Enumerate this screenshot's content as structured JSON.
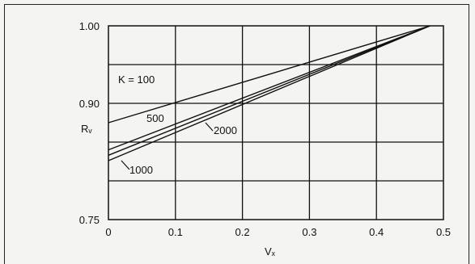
{
  "chart_data": {
    "type": "line",
    "xlabel": "Vₓ",
    "ylabel": "Rᵥ",
    "xlim": [
      0,
      0.5
    ],
    "ylim": [
      0.75,
      1.0
    ],
    "x_ticks": [
      "0",
      "0.1",
      "0.2",
      "0.3",
      "0.4",
      "0.5"
    ],
    "y_ticks": [
      "0.75",
      "0.90",
      "1.00"
    ],
    "grid": true,
    "series": [
      {
        "name": "K = 100",
        "x": [
          0,
          0.48
        ],
        "y": [
          0.875,
          1.0
        ]
      },
      {
        "name": "500",
        "x": [
          0,
          0.48
        ],
        "y": [
          0.84,
          1.0
        ]
      },
      {
        "name": "2000",
        "x": [
          0,
          0.48
        ],
        "y": [
          0.833,
          1.0
        ]
      },
      {
        "name": "1000",
        "x": [
          0,
          0.48
        ],
        "y": [
          0.826,
          1.0
        ]
      }
    ]
  }
}
